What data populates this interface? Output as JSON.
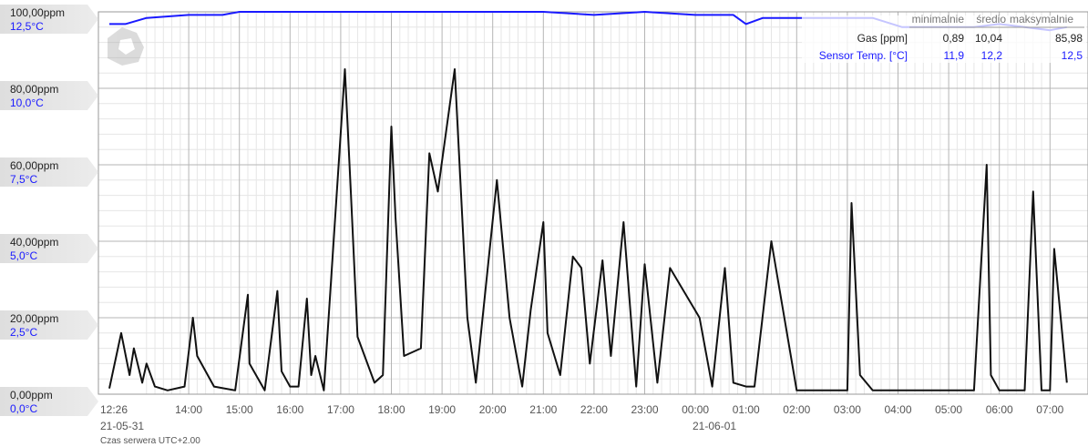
{
  "chart_data": {
    "type": "line",
    "x_axis": {
      "tick_labels": [
        "12:26",
        "14:00",
        "15:00",
        "16:00",
        "17:00",
        "18:00",
        "19:00",
        "20:00",
        "21:00",
        "22:00",
        "23:00",
        "00:00",
        "01:00",
        "02:00",
        "03:00",
        "04:00",
        "05:00",
        "06:00",
        "07:00"
      ],
      "start_date": "21-05-31",
      "next_date": "21-06-01",
      "server_time_note": "Czas serwera UTC+2.00"
    },
    "y_axis_gas": {
      "min": 0,
      "max": 100,
      "tick_labels": [
        "100,00ppm",
        "80,00ppm",
        "60,00ppm",
        "40,00ppm",
        "20,00ppm",
        "0,00ppm"
      ],
      "color": "#222222"
    },
    "y_axis_temp": {
      "min": 0,
      "max": 12.5,
      "tick_labels": [
        "12,5°C",
        "10,0°C",
        "7,5°C",
        "5,0°C",
        "2,5°C",
        "0,0°C"
      ],
      "color": "#1a1aff"
    },
    "grid": true,
    "legend": {
      "position": "top-right",
      "headers": [
        "minimalnie",
        "średio",
        "maksymalnie"
      ],
      "rows": [
        {
          "name": "Gas [ppm]",
          "min": "0,89",
          "avg": "10,04",
          "max": "85,98",
          "color": "#222222"
        },
        {
          "name": "Sensor Temp. [°C]",
          "min": "11,9",
          "avg": "12,2",
          "max": "12,5",
          "color": "#1a1aff"
        }
      ]
    },
    "series": [
      {
        "name": "Gas [ppm]",
        "color": "#111111",
        "x": [
          "12:26",
          "12:40",
          "12:50",
          "12:55",
          "13:05",
          "13:10",
          "13:20",
          "13:35",
          "13:55",
          "14:05",
          "14:10",
          "14:30",
          "14:55",
          "15:10",
          "15:12",
          "15:30",
          "15:45",
          "15:50",
          "16:00",
          "16:10",
          "16:20",
          "16:25",
          "16:30",
          "16:40",
          "17:05",
          "17:12",
          "17:20",
          "17:40",
          "17:50",
          "18:00",
          "18:05",
          "18:15",
          "18:35",
          "18:45",
          "18:55",
          "19:15",
          "19:30",
          "19:40",
          "20:05",
          "20:20",
          "20:35",
          "20:45",
          "21:00",
          "21:05",
          "21:20",
          "21:35",
          "21:45",
          "21:55",
          "22:10",
          "22:20",
          "22:35",
          "22:50",
          "23:00",
          "23:15",
          "23:30",
          "00:05",
          "00:20",
          "00:35",
          "00:45",
          "01:00",
          "01:10",
          "01:30",
          "02:00",
          "02:30",
          "03:00",
          "03:05",
          "03:15",
          "03:30",
          "04:00",
          "05:00",
          "05:30",
          "05:45",
          "05:50",
          "06:00",
          "06:10",
          "06:30",
          "06:40",
          "06:50",
          "07:00",
          "07:05",
          "07:20"
        ],
        "y": [
          1.5,
          16,
          5,
          12,
          3,
          8,
          2,
          1,
          2,
          20,
          10,
          2,
          1,
          26,
          8,
          1,
          27,
          6,
          2,
          2,
          25,
          5,
          10,
          1,
          85,
          53,
          15,
          3,
          5,
          70,
          46,
          10,
          12,
          63,
          53,
          85,
          20,
          3,
          56,
          20,
          2,
          22,
          45,
          16,
          5,
          36,
          33,
          8,
          35,
          10,
          45,
          2,
          34,
          3,
          33,
          20,
          2,
          33,
          3,
          2,
          2,
          40,
          1,
          1,
          1,
          50,
          5,
          1,
          1,
          1,
          1,
          60,
          5,
          1,
          1,
          1,
          53,
          1,
          1,
          38,
          3
        ],
        "y_unit": "ppm"
      },
      {
        "name": "Sensor Temp. [°C]",
        "color": "#1a1aff",
        "x": [
          "12:26",
          "12:45",
          "13:10",
          "14:00",
          "14:40",
          "15:00",
          "16:00",
          "17:00",
          "18:00",
          "19:00",
          "20:00",
          "21:00",
          "22:00",
          "23:00",
          "00:00",
          "00:45",
          "01:00",
          "01:20",
          "03:00",
          "03:30",
          "04:05",
          "05:00",
          "05:30",
          "06:00",
          "07:00",
          "07:20"
        ],
        "y": [
          12.1,
          12.1,
          12.3,
          12.4,
          12.4,
          12.5,
          12.5,
          12.5,
          12.5,
          12.5,
          12.5,
          12.5,
          12.4,
          12.5,
          12.4,
          12.4,
          12.1,
          12.3,
          12.3,
          12.3,
          12.0,
          12.0,
          12.0,
          12.1,
          11.9,
          12.0
        ],
        "y_unit": "°C"
      }
    ]
  }
}
